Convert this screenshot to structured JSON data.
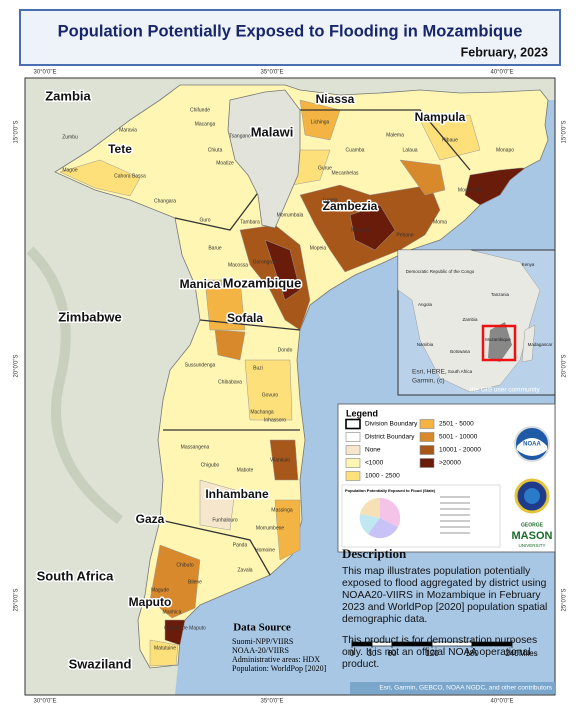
{
  "header": {
    "title": "Population Potentially Exposed to Flooding in Mozambique",
    "subtitle": "February, 2023"
  },
  "graticule": {
    "top": [
      "30°0'0\"E",
      "35°0'0\"E",
      "40°0'0\"E"
    ],
    "bottom": [
      "30°0'0\"E",
      "35°0'0\"E",
      "40°0'0\"E"
    ],
    "left": [
      "15°0'0\"S",
      "20°0'0\"S",
      "25°0'0\"S"
    ],
    "right": [
      "15°0'0\"S",
      "20°0'0\"S",
      "25°0'0\"S"
    ]
  },
  "countries": [
    "Zambia",
    "Malawi",
    "Zimbabwe",
    "South Africa",
    "Swaziland",
    "Mozambique"
  ],
  "provinces": [
    "Tete",
    "Niassa",
    "Nampula",
    "Zambezia",
    "Manica",
    "Sofala",
    "Inhambane",
    "Gaza",
    "Maputo"
  ],
  "districts": [
    "Chifunde",
    "Macanga",
    "Tsangano",
    "Maravia",
    "Zumbu",
    "Chiuta",
    "Moatize",
    "Magoe",
    "Cahora Bassa",
    "Changara",
    "Guro",
    "Tambara",
    "Barue",
    "Macossa",
    "Gorongosa",
    "Sussundenga",
    "Chibabava",
    "Machanga",
    "Buzi",
    "Dondo",
    "Massangena",
    "Chigubo",
    "Mabote",
    "Vilankulo",
    "Funhalouro",
    "Panda",
    "Homoine",
    "Chibuto",
    "Bilene",
    "Magude",
    "Manhica",
    "Matutuine",
    "Cidade De Maputo",
    "Lichinga",
    "Cuamba",
    "Mecanhelas",
    "Lalaua",
    "Ribaue",
    "Malema",
    "Monapo",
    "Mogovolas",
    "Moma",
    "Pebane",
    "Mocuba",
    "Gurue",
    "Lugela",
    "Mopeia",
    "Morrumbala",
    "Inhassoro",
    "Govuro",
    "Massinga",
    "Morrumbene",
    "Zavala"
  ],
  "inset": {
    "labels": [
      "Democratic Republic of the Congo",
      "Tanzania",
      "Angola",
      "Zambia",
      "Namibia",
      "Botswana",
      "South Africa",
      "Madagascar",
      "Mozambique",
      "Kenya"
    ],
    "credits": [
      "Esri, HERE,",
      "Garmin, (c)",
      "the GIS user community"
    ]
  },
  "legend": {
    "title": "Legend",
    "items": [
      {
        "name": "Division Boundary",
        "color": "#ffffff"
      },
      {
        "name": "District Boundary",
        "color": "#ffffff"
      },
      {
        "name": "None",
        "color": "#f6e7cc"
      },
      {
        "name": "<1000",
        "color": "#fff6b3"
      },
      {
        "name": "1000 - 2500",
        "color": "#fde07a"
      },
      {
        "name": "2501 - 5000",
        "color": "#f4b443"
      },
      {
        "name": "5001 - 10000",
        "color": "#d8892c"
      },
      {
        "name": "10001 - 20000",
        "color": "#a65719"
      },
      {
        "name": ">20000",
        "color": "#6a1c0a"
      }
    ],
    "pie_title": "Population Potentially Exposed to Flood (State)"
  },
  "logos": [
    "NOAA",
    "GEORGE",
    "MASON",
    "UNIVERSITY"
  ],
  "description": {
    "heading": "Description",
    "paragraphs": [
      "This map illustrates population potentially exposed to flood aggregated by district using NOAA20-VIIRS in Mozambique in February 2023 and WorldPop [2020] population spatial demographic data.",
      "This product is for demonstration purposes only. It is not an official NOAA operational  product."
    ]
  },
  "data_source": {
    "heading": "Data Source",
    "lines": [
      "Suomi-NPP/VIIRS",
      "NOAA-20/VIIRS",
      "Administrative areas: HDX",
      "Population: WorldPop [2020]"
    ]
  },
  "scale_bar": {
    "ticks": [
      0,
      30,
      60,
      120,
      180,
      240
    ],
    "unit": "Miles"
  },
  "attribution": "Esri, Garmin, GEBCO, NOAA NGDC, and other contributors"
}
